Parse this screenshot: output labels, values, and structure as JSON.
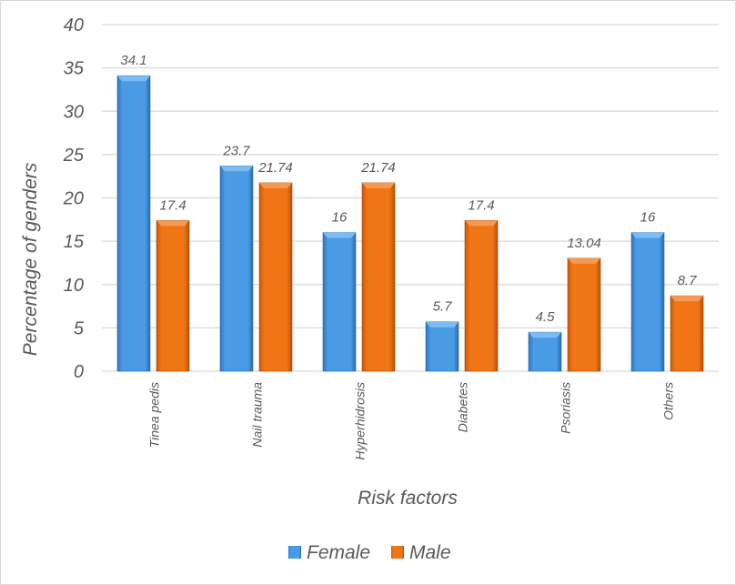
{
  "chart_data": {
    "type": "bar",
    "title": "",
    "xlabel": "Risk factors",
    "ylabel": "Percentage of  genders",
    "ylim": [
      0,
      40
    ],
    "yticks": [
      0,
      5,
      10,
      15,
      20,
      25,
      30,
      35,
      40
    ],
    "grid": true,
    "legend_position": "bottom",
    "categories": [
      "Tinea pedis",
      "Nail trauma",
      "Hyperhidrosis",
      "Diabetes",
      "Psoriasis",
      "Others"
    ],
    "series": [
      {
        "name": "Female",
        "color": "#3d8fd9",
        "values": [
          34.1,
          23.7,
          16,
          5.7,
          4.5,
          16
        ],
        "labels": [
          "34.1",
          "23.7",
          "16",
          "5.7",
          "4.5",
          "16"
        ]
      },
      {
        "name": "Male",
        "color": "#e86b12",
        "values": [
          17.4,
          21.74,
          21.74,
          17.4,
          13.04,
          8.7
        ],
        "labels": [
          "17.4",
          "21.74",
          "21.74",
          "17.4",
          "13.04",
          "8.7"
        ]
      }
    ]
  }
}
